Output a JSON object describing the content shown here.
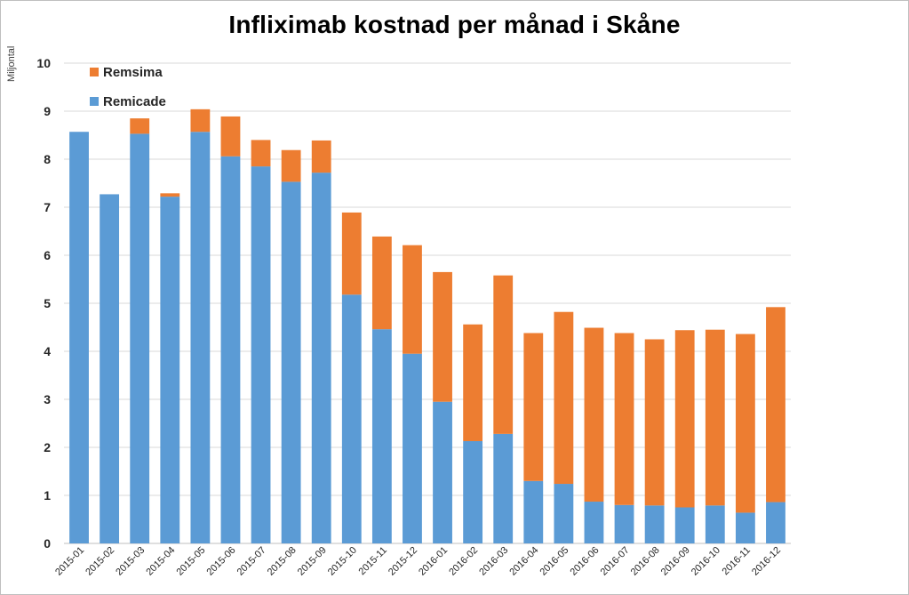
{
  "chart_data": {
    "type": "bar",
    "stacked": true,
    "title": "Infliximab kostnad per månad i Skåne",
    "ylabel": "Miljontal",
    "xlabel": "",
    "ylim": [
      0,
      10
    ],
    "yticks": [
      0,
      1,
      2,
      3,
      4,
      5,
      6,
      7,
      8,
      9,
      10
    ],
    "grid": true,
    "legend_position": "top-left",
    "categories": [
      "2015-01",
      "2015-02",
      "2015-03",
      "2015-04",
      "2015-05",
      "2015-06",
      "2015-07",
      "2015-08",
      "2015-09",
      "2015-10",
      "2015-11",
      "2015-12",
      "2016-01",
      "2016-02",
      "2016-03",
      "2016-04",
      "2016-05",
      "2016-06",
      "2016-07",
      "2016-08",
      "2016-09",
      "2016-10",
      "2016-11",
      "2016-12"
    ],
    "series": [
      {
        "name": "Remicade",
        "color": "#5B9BD5",
        "values": [
          8.57,
          7.27,
          8.53,
          7.22,
          8.57,
          8.06,
          7.85,
          7.53,
          7.72,
          5.18,
          4.46,
          3.95,
          2.95,
          2.13,
          2.28,
          1.3,
          1.24,
          0.87,
          0.8,
          0.79,
          0.75,
          0.79,
          0.64,
          0.86
        ]
      },
      {
        "name": "Remsima",
        "color": "#ED7D31",
        "values": [
          0,
          0,
          0.32,
          0.07,
          0.47,
          0.83,
          0.55,
          0.66,
          0.67,
          1.71,
          1.93,
          2.26,
          2.7,
          2.43,
          3.3,
          3.08,
          3.58,
          3.62,
          3.58,
          3.46,
          3.69,
          3.66,
          3.72,
          4.06
        ]
      }
    ]
  }
}
